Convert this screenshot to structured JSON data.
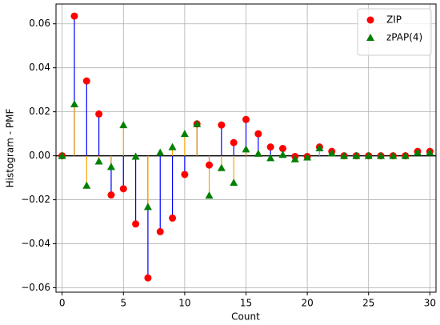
{
  "chart_data": {
    "type": "stem",
    "x_label": "Count",
    "y_label": "Histogram - PMF",
    "x": [
      0,
      1,
      2,
      3,
      4,
      5,
      6,
      7,
      8,
      9,
      10,
      11,
      12,
      13,
      14,
      15,
      16,
      17,
      18,
      19,
      20,
      21,
      22,
      23,
      24,
      25,
      26,
      27,
      28,
      29,
      30
    ],
    "series": [
      {
        "name": "ZIP",
        "color": "#ff0000",
        "stem_color": "#0000ff",
        "marker": "circle",
        "values": [
          0,
          0.0635,
          0.034,
          0.019,
          -0.0178,
          -0.015,
          -0.031,
          -0.0555,
          -0.0345,
          -0.0283,
          -0.0085,
          0.0145,
          -0.0042,
          0.014,
          0.006,
          0.0165,
          0.01,
          0.004,
          0.0033,
          -0.0003,
          -0.0003,
          0.004,
          0.002,
          0,
          0,
          0,
          0,
          0,
          0,
          0.002,
          0.002
        ]
      },
      {
        "name": "zPAP(4)",
        "color": "#008000",
        "stem_color": "#ffa500",
        "marker": "triangle",
        "values": [
          0,
          0.0235,
          -0.0135,
          -0.0025,
          -0.005,
          0.014,
          -0.0003,
          -0.0232,
          0.0015,
          0.004,
          0.01,
          0.0145,
          -0.018,
          -0.0055,
          -0.0122,
          0.003,
          0.001,
          -0.001,
          0.0005,
          -0.0015,
          -0.0007,
          0.0035,
          0.0012,
          0,
          0,
          0,
          0,
          0,
          0,
          0.0015,
          0.0015
        ]
      }
    ],
    "xlim": [
      -0.5,
      30.5
    ],
    "xticks": [
      0,
      5,
      10,
      15,
      20,
      25,
      30
    ],
    "ylim": [
      -0.062,
      0.069
    ],
    "yticks": [
      {
        "value": -0.06,
        "label": "−0.06"
      },
      {
        "value": -0.04,
        "label": "−0.04"
      },
      {
        "value": -0.02,
        "label": "−0.02"
      },
      {
        "value": 0,
        "label": "0.00"
      },
      {
        "value": 0.02,
        "label": "0.02"
      },
      {
        "value": 0.04,
        "label": "0.04"
      },
      {
        "value": 0.06,
        "label": "0.06"
      }
    ],
    "grid": true,
    "legend": "upper right"
  }
}
